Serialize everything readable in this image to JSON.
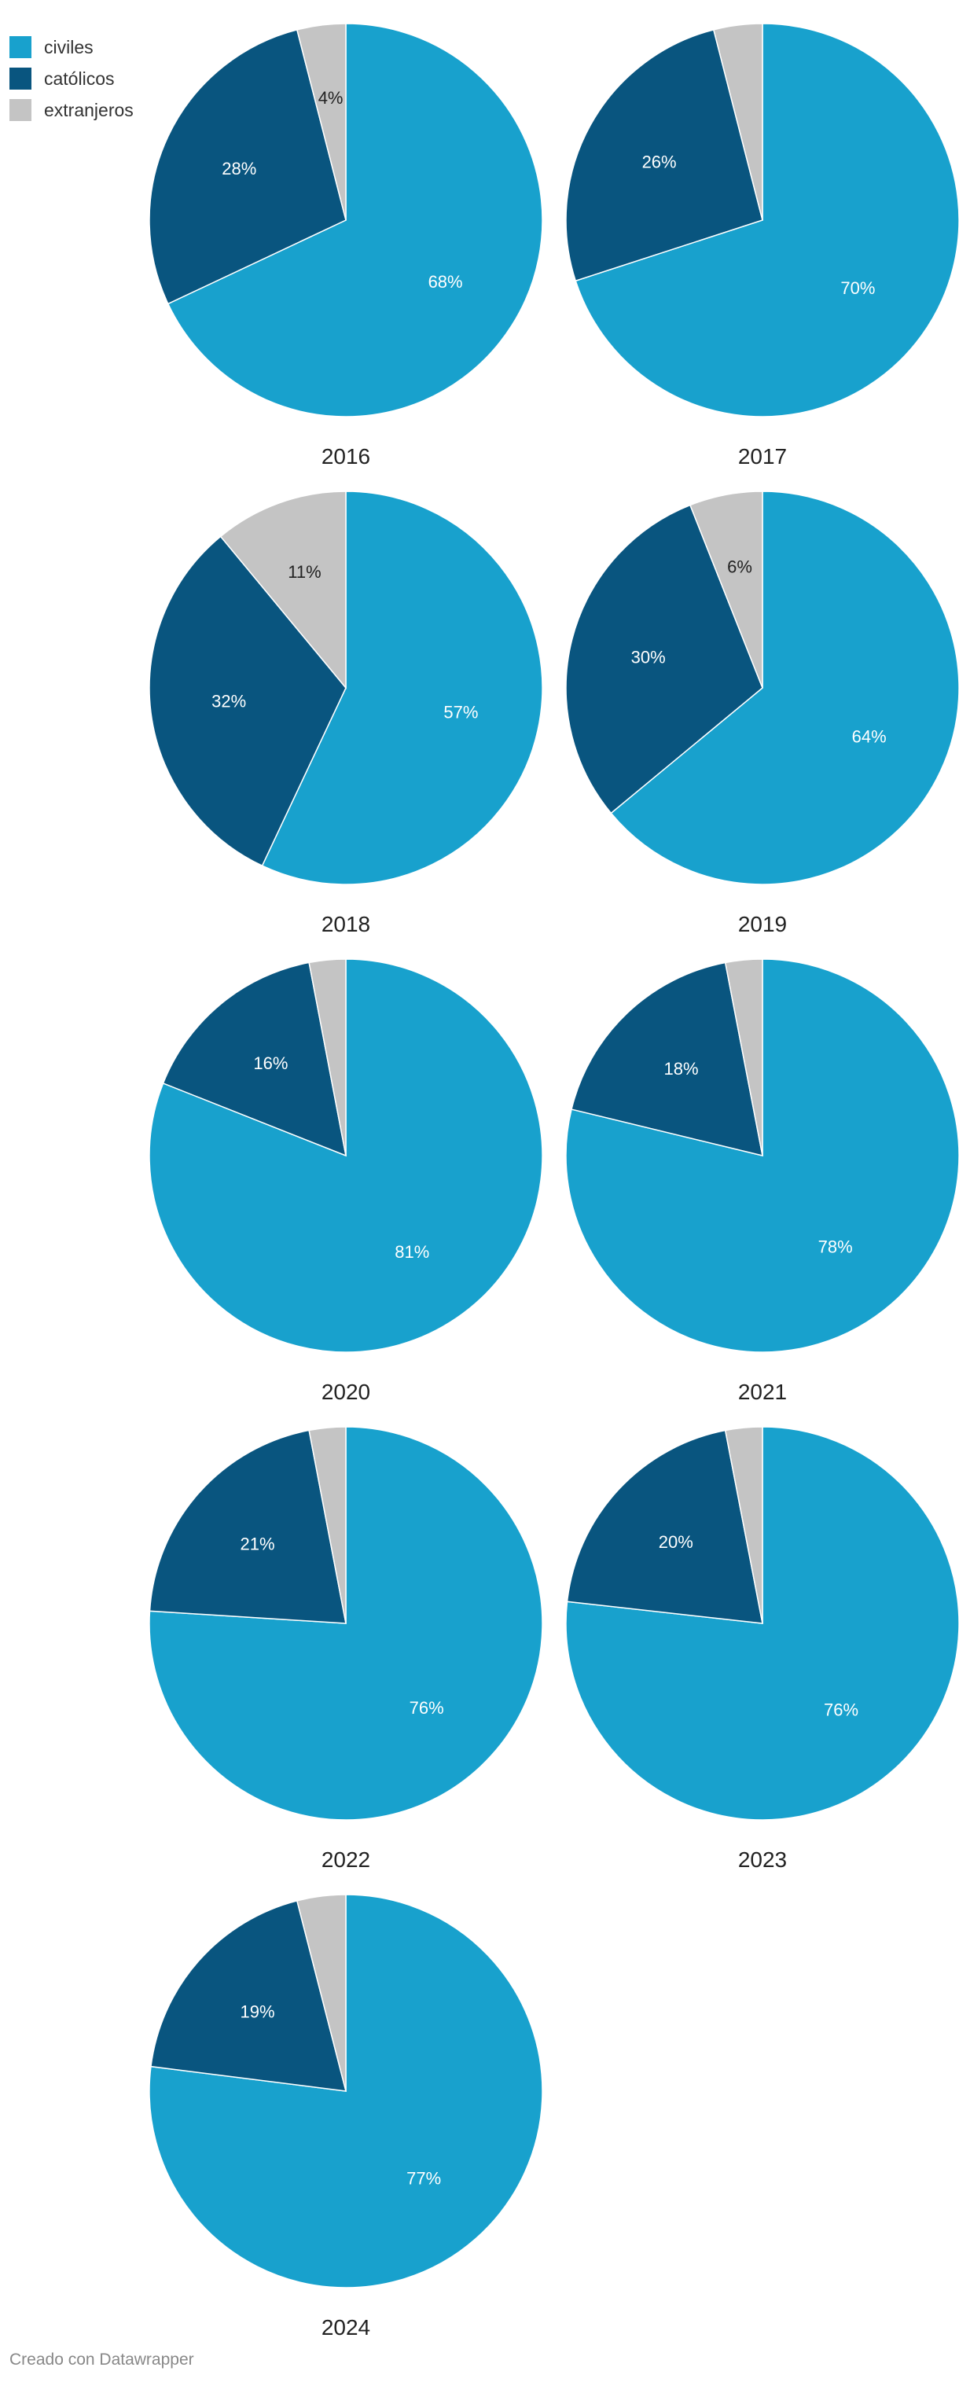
{
  "legend": {
    "items": [
      {
        "label": "civiles",
        "color": "#18a1cd"
      },
      {
        "label": "católicos",
        "color": "#09557f"
      },
      {
        "label": "extranjeros",
        "color": "#c4c4c4"
      }
    ]
  },
  "credit": "Creado con Datawrapper",
  "chart_data": {
    "type": "pie",
    "categories": [
      "civiles",
      "católicos",
      "extranjeros"
    ],
    "colors": [
      "#18a1cd",
      "#09557f",
      "#c4c4c4"
    ],
    "label_colors": [
      "#ffffff",
      "#ffffff",
      "#222222"
    ],
    "charts": [
      {
        "year": "2016",
        "values": [
          68,
          28,
          4
        ],
        "labels": [
          "68%",
          "28%",
          "4%"
        ]
      },
      {
        "year": "2017",
        "values": [
          70,
          26,
          4
        ],
        "labels": [
          "70%",
          "26%",
          ""
        ]
      },
      {
        "year": "2018",
        "values": [
          57,
          32,
          11
        ],
        "labels": [
          "57%",
          "32%",
          "11%"
        ]
      },
      {
        "year": "2019",
        "values": [
          64,
          30,
          6
        ],
        "labels": [
          "64%",
          "30%",
          "6%"
        ]
      },
      {
        "year": "2020",
        "values": [
          81,
          16,
          3
        ],
        "labels": [
          "81%",
          "16%",
          ""
        ]
      },
      {
        "year": "2021",
        "values": [
          78,
          18,
          3
        ],
        "labels": [
          "78%",
          "18%",
          ""
        ]
      },
      {
        "year": "2022",
        "values": [
          76,
          21,
          3
        ],
        "labels": [
          "76%",
          "21%",
          ""
        ]
      },
      {
        "year": "2023",
        "values": [
          76,
          20,
          3
        ],
        "labels": [
          "76%",
          "20%",
          ""
        ]
      },
      {
        "year": "2024",
        "values": [
          77,
          19,
          4
        ],
        "labels": [
          "77%",
          "19%",
          ""
        ]
      }
    ]
  }
}
